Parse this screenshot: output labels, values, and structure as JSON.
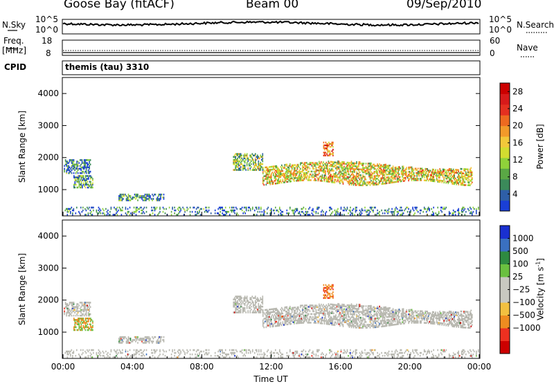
{
  "header": {
    "station": "Goose Bay (fitACF)",
    "beam": "Beam 00",
    "date": "09/Sep/2010"
  },
  "sky_panel": {
    "left_label": "N.Sky",
    "left_ticks": [
      "10^5",
      "10^0"
    ],
    "right_ticks": [
      "10^5",
      "10^0"
    ],
    "right_label": "N.Search"
  },
  "freq_panel": {
    "left_label_1": "Freq.",
    "left_label_2": "[MHz]",
    "left_ticks": [
      "18",
      "8"
    ],
    "right_ticks": [
      "60",
      "0"
    ],
    "right_label": "Nave"
  },
  "cpid": {
    "label": "CPID",
    "value": "themis (tau) 3310"
  },
  "colors": {
    "power_scale": [
      "#1a3fd6",
      "#2e5fa8",
      "#3b8a5a",
      "#5aa845",
      "#8fd23a",
      "#d2dc30",
      "#f2c83a",
      "#f29a2a",
      "#ee6a20",
      "#e53020",
      "#d81a1a",
      "#cc0000"
    ],
    "velocity_scale": [
      "#cc0000",
      "#ee3020",
      "#ee8c20",
      "#f2c040",
      "#c8c8c0",
      "#c8c8c0",
      "#6ac040",
      "#2e8a40",
      "#3a70c0",
      "#1a30d0"
    ],
    "ground_scatter": "#b8b8b0"
  },
  "chart_data": [
    {
      "type": "heatmap",
      "name": "power",
      "ylabel": "Slant Range [km]",
      "xlim": [
        0,
        24
      ],
      "ylim": [
        180,
        4500
      ],
      "yticks": [
        "1000",
        "2000",
        "3000",
        "4000"
      ],
      "colorbar_label": "Power [dB]",
      "colorbar_ticks": [
        "4",
        "8",
        "12",
        "16",
        "20",
        "24",
        "28"
      ],
      "colorbar_range": [
        0,
        30
      ]
    },
    {
      "type": "heatmap",
      "name": "velocity",
      "ylabel": "Slant Range [km]",
      "xlim": [
        0,
        24
      ],
      "ylim": [
        180,
        4500
      ],
      "yticks": [
        "1000",
        "2000",
        "3000",
        "4000"
      ],
      "colorbar_label": "Velocity [m s",
      "colorbar_label_sup": "-1",
      "colorbar_label_end": "]",
      "colorbar_ticks": [
        "1000",
        "500",
        "100",
        "25",
        "−25",
        "−100",
        "−500",
        "−1000"
      ],
      "xticks": [
        "00:00",
        "04:00",
        "08:00",
        "12:00",
        "16:00",
        "20:00",
        "00:00"
      ],
      "xlabel": "Time UT"
    }
  ]
}
